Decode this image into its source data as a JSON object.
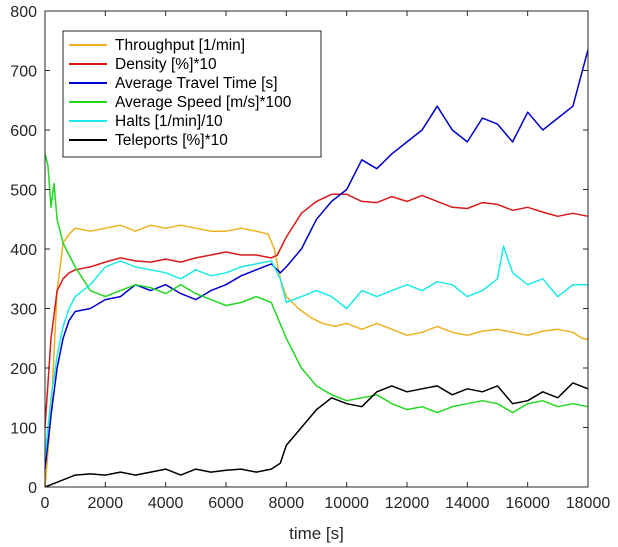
{
  "chart_data": {
    "type": "line",
    "title": "",
    "xlabel": "time [s]",
    "ylabel": "",
    "xlim": [
      0,
      18000
    ],
    "ylim": [
      0,
      800
    ],
    "xticks": [
      0,
      2000,
      4000,
      6000,
      8000,
      10000,
      12000,
      14000,
      16000,
      18000
    ],
    "yticks": [
      0,
      100,
      200,
      300,
      400,
      500,
      600,
      700,
      800
    ],
    "grid": false,
    "legend_position": "top-left",
    "series": [
      {
        "name": "Throughput [1/min]",
        "color": "#edb120",
        "points": [
          [
            0,
            0
          ],
          [
            200,
            120
          ],
          [
            400,
            330
          ],
          [
            600,
            410
          ],
          [
            800,
            425
          ],
          [
            1000,
            435
          ],
          [
            1500,
            430
          ],
          [
            2000,
            435
          ],
          [
            2500,
            440
          ],
          [
            3000,
            430
          ],
          [
            3500,
            440
          ],
          [
            4000,
            435
          ],
          [
            4500,
            440
          ],
          [
            5000,
            435
          ],
          [
            5500,
            430
          ],
          [
            6000,
            430
          ],
          [
            6500,
            435
          ],
          [
            7000,
            430
          ],
          [
            7400,
            425
          ],
          [
            7600,
            400
          ],
          [
            7800,
            350
          ],
          [
            8000,
            320
          ],
          [
            8400,
            300
          ],
          [
            8800,
            285
          ],
          [
            9200,
            275
          ],
          [
            9600,
            270
          ],
          [
            10000,
            275
          ],
          [
            10500,
            265
          ],
          [
            11000,
            275
          ],
          [
            11500,
            265
          ],
          [
            12000,
            255
          ],
          [
            12500,
            260
          ],
          [
            13000,
            270
          ],
          [
            13500,
            260
          ],
          [
            14000,
            255
          ],
          [
            14500,
            262
          ],
          [
            15000,
            265
          ],
          [
            15500,
            260
          ],
          [
            16000,
            255
          ],
          [
            16500,
            262
          ],
          [
            17000,
            265
          ],
          [
            17500,
            260
          ],
          [
            17800,
            250
          ],
          [
            18000,
            248
          ]
        ]
      },
      {
        "name": "Density [%]*10",
        "color": "#d91a1a",
        "points": [
          [
            0,
            100
          ],
          [
            200,
            250
          ],
          [
            400,
            330
          ],
          [
            600,
            350
          ],
          [
            800,
            360
          ],
          [
            1000,
            365
          ],
          [
            1500,
            370
          ],
          [
            2000,
            378
          ],
          [
            2500,
            385
          ],
          [
            3000,
            380
          ],
          [
            3500,
            378
          ],
          [
            4000,
            383
          ],
          [
            4500,
            378
          ],
          [
            5000,
            385
          ],
          [
            5500,
            390
          ],
          [
            6000,
            395
          ],
          [
            6500,
            390
          ],
          [
            7000,
            390
          ],
          [
            7500,
            385
          ],
          [
            7700,
            390
          ],
          [
            8000,
            420
          ],
          [
            8500,
            460
          ],
          [
            9000,
            480
          ],
          [
            9500,
            492
          ],
          [
            10000,
            492
          ],
          [
            10500,
            480
          ],
          [
            11000,
            478
          ],
          [
            11500,
            488
          ],
          [
            12000,
            480
          ],
          [
            12500,
            490
          ],
          [
            13000,
            480
          ],
          [
            13500,
            470
          ],
          [
            14000,
            468
          ],
          [
            14500,
            478
          ],
          [
            15000,
            475
          ],
          [
            15500,
            465
          ],
          [
            16000,
            470
          ],
          [
            16500,
            462
          ],
          [
            17000,
            455
          ],
          [
            17500,
            460
          ],
          [
            18000,
            455
          ]
        ]
      },
      {
        "name": "Average Travel Time [s]",
        "color": "#0000cc",
        "points": [
          [
            0,
            30
          ],
          [
            200,
            120
          ],
          [
            400,
            200
          ],
          [
            600,
            250
          ],
          [
            800,
            280
          ],
          [
            1000,
            295
          ],
          [
            1500,
            300
          ],
          [
            2000,
            315
          ],
          [
            2500,
            320
          ],
          [
            3000,
            340
          ],
          [
            3500,
            330
          ],
          [
            4000,
            340
          ],
          [
            4500,
            325
          ],
          [
            5000,
            315
          ],
          [
            5500,
            330
          ],
          [
            6000,
            340
          ],
          [
            6500,
            355
          ],
          [
            7000,
            365
          ],
          [
            7500,
            375
          ],
          [
            7800,
            360
          ],
          [
            8000,
            370
          ],
          [
            8500,
            400
          ],
          [
            9000,
            450
          ],
          [
            9500,
            480
          ],
          [
            10000,
            500
          ],
          [
            10500,
            550
          ],
          [
            11000,
            535
          ],
          [
            11500,
            560
          ],
          [
            12000,
            580
          ],
          [
            12500,
            600
          ],
          [
            13000,
            640
          ],
          [
            13500,
            600
          ],
          [
            14000,
            580
          ],
          [
            14500,
            620
          ],
          [
            15000,
            610
          ],
          [
            15500,
            580
          ],
          [
            16000,
            630
          ],
          [
            16500,
            600
          ],
          [
            17000,
            620
          ],
          [
            17500,
            640
          ],
          [
            18000,
            735
          ]
        ]
      },
      {
        "name": "Average Speed [m/s]*100",
        "color": "#21d921",
        "points": [
          [
            0,
            560
          ],
          [
            100,
            540
          ],
          [
            200,
            470
          ],
          [
            300,
            510
          ],
          [
            400,
            450
          ],
          [
            600,
            410
          ],
          [
            800,
            390
          ],
          [
            1000,
            370
          ],
          [
            1500,
            330
          ],
          [
            2000,
            320
          ],
          [
            2500,
            330
          ],
          [
            3000,
            340
          ],
          [
            3500,
            335
          ],
          [
            4000,
            325
          ],
          [
            4500,
            340
          ],
          [
            5000,
            325
          ],
          [
            5500,
            315
          ],
          [
            6000,
            305
          ],
          [
            6500,
            310
          ],
          [
            7000,
            320
          ],
          [
            7500,
            310
          ],
          [
            8000,
            250
          ],
          [
            8500,
            200
          ],
          [
            9000,
            170
          ],
          [
            9500,
            155
          ],
          [
            10000,
            145
          ],
          [
            10500,
            150
          ],
          [
            11000,
            155
          ],
          [
            11500,
            140
          ],
          [
            12000,
            130
          ],
          [
            12500,
            135
          ],
          [
            13000,
            125
          ],
          [
            13500,
            135
          ],
          [
            14000,
            140
          ],
          [
            14500,
            145
          ],
          [
            15000,
            140
          ],
          [
            15500,
            125
          ],
          [
            16000,
            140
          ],
          [
            16500,
            145
          ],
          [
            17000,
            135
          ],
          [
            17500,
            140
          ],
          [
            18000,
            135
          ]
        ]
      },
      {
        "name": "Halts [1/min]/10",
        "color": "#1de8e8",
        "points": [
          [
            0,
            50
          ],
          [
            200,
            150
          ],
          [
            400,
            220
          ],
          [
            600,
            270
          ],
          [
            800,
            300
          ],
          [
            1000,
            320
          ],
          [
            1500,
            340
          ],
          [
            2000,
            370
          ],
          [
            2500,
            380
          ],
          [
            3000,
            370
          ],
          [
            3500,
            365
          ],
          [
            4000,
            360
          ],
          [
            4500,
            350
          ],
          [
            5000,
            365
          ],
          [
            5500,
            355
          ],
          [
            6000,
            360
          ],
          [
            6500,
            370
          ],
          [
            7000,
            375
          ],
          [
            7500,
            380
          ],
          [
            7800,
            350
          ],
          [
            8000,
            310
          ],
          [
            8500,
            320
          ],
          [
            9000,
            330
          ],
          [
            9500,
            320
          ],
          [
            10000,
            300
          ],
          [
            10500,
            330
          ],
          [
            11000,
            320
          ],
          [
            11500,
            330
          ],
          [
            12000,
            340
          ],
          [
            12500,
            330
          ],
          [
            13000,
            345
          ],
          [
            13500,
            340
          ],
          [
            14000,
            320
          ],
          [
            14500,
            330
          ],
          [
            15000,
            350
          ],
          [
            15200,
            405
          ],
          [
            15500,
            360
          ],
          [
            16000,
            340
          ],
          [
            16500,
            350
          ],
          [
            17000,
            320
          ],
          [
            17500,
            340
          ],
          [
            18000,
            340
          ]
        ]
      },
      {
        "name": "Teleports [%]*10",
        "color": "#000000",
        "points": [
          [
            0,
            0
          ],
          [
            500,
            10
          ],
          [
            1000,
            20
          ],
          [
            1500,
            22
          ],
          [
            2000,
            20
          ],
          [
            2500,
            25
          ],
          [
            3000,
            20
          ],
          [
            3500,
            25
          ],
          [
            4000,
            30
          ],
          [
            4500,
            20
          ],
          [
            5000,
            30
          ],
          [
            5500,
            25
          ],
          [
            6000,
            28
          ],
          [
            6500,
            30
          ],
          [
            7000,
            25
          ],
          [
            7500,
            30
          ],
          [
            7800,
            40
          ],
          [
            8000,
            70
          ],
          [
            8500,
            100
          ],
          [
            9000,
            130
          ],
          [
            9500,
            150
          ],
          [
            10000,
            140
          ],
          [
            10500,
            135
          ],
          [
            11000,
            160
          ],
          [
            11500,
            170
          ],
          [
            12000,
            160
          ],
          [
            12500,
            165
          ],
          [
            13000,
            170
          ],
          [
            13500,
            155
          ],
          [
            14000,
            165
          ],
          [
            14500,
            160
          ],
          [
            15000,
            170
          ],
          [
            15500,
            140
          ],
          [
            16000,
            145
          ],
          [
            16500,
            160
          ],
          [
            17000,
            150
          ],
          [
            17500,
            175
          ],
          [
            18000,
            165
          ]
        ]
      }
    ]
  }
}
